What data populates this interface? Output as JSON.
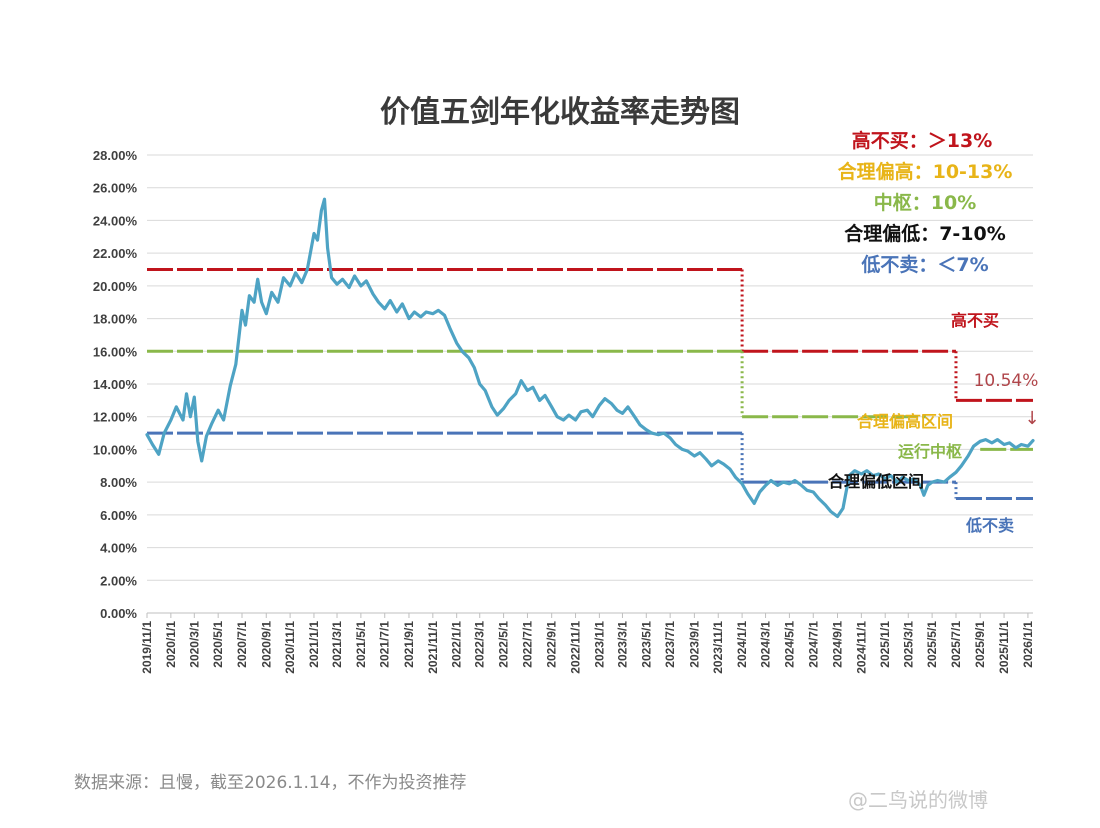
{
  "colors": {
    "red": "#c0141c",
    "orange": "#e8b418",
    "green": "#8ab84a",
    "black": "#111111",
    "blue": "#4a74b8",
    "line": "#4ea3c4",
    "grid": "#d9d9d9"
  },
  "chart_data": {
    "type": "line",
    "title": "价值五剑年化收益率走势图",
    "xlabel": "",
    "ylabel": "",
    "ylim": [
      0,
      28
    ],
    "xlim": [
      "2019-11-01",
      "2026-01-14"
    ],
    "grid": true,
    "legend_position": "top-right",
    "y_ticks": [
      "0.00%",
      "2.00%",
      "4.00%",
      "6.00%",
      "8.00%",
      "10.00%",
      "12.00%",
      "14.00%",
      "16.00%",
      "18.00%",
      "20.00%",
      "22.00%",
      "24.00%",
      "26.00%",
      "28.00%"
    ],
    "x_ticks": [
      "2019/11/1",
      "2020/1/1",
      "2020/3/1",
      "2020/5/1",
      "2020/7/1",
      "2020/9/1",
      "2020/11/1",
      "2021/1/1",
      "2021/3/1",
      "2021/5/1",
      "2021/7/1",
      "2021/9/1",
      "2021/11/1",
      "2022/1/1",
      "2022/3/1",
      "2022/5/1",
      "2022/7/1",
      "2022/9/1",
      "2022/11/1",
      "2023/1/1",
      "2023/3/1",
      "2023/5/1",
      "2023/7/1",
      "2023/9/1",
      "2023/11/1",
      "2024/1/1",
      "2024/3/1",
      "2024/5/1",
      "2024/7/1",
      "2024/9/1",
      "2024/11/1",
      "2025/1/1",
      "2025/3/1",
      "2025/5/1",
      "2025/7/1",
      "2025/9/1",
      "2025/11/1",
      "2026/1/1"
    ],
    "legend": [
      {
        "label": "高不买：＞13%",
        "color": "#c0141c"
      },
      {
        "label": "合理偏高：10-13%",
        "color": "#e8b418"
      },
      {
        "label": "中枢：10%",
        "color": "#8ab84a"
      },
      {
        "label": "合理偏低：7-10%",
        "color": "#111111"
      },
      {
        "label": "低不卖：＜7%",
        "color": "#4a74b8"
      }
    ],
    "annotations": {
      "high": "高不买",
      "current_value": "10.54%",
      "arrow": "↓",
      "upper_band": "合理偏高区间",
      "center": "运行中枢",
      "lower_band": "合理偏低区间",
      "low": "低不卖"
    },
    "threshold_series": [
      {
        "color": "#c0141c",
        "style": "dashed",
        "points": [
          [
            "2019-11-01",
            21
          ],
          [
            "2024-01-01",
            21
          ]
        ]
      },
      {
        "color": "#c0141c",
        "style": "dotted",
        "points": [
          [
            "2024-01-01",
            21
          ],
          [
            "2024-01-01",
            16
          ]
        ]
      },
      {
        "color": "#c0141c",
        "style": "dashed",
        "points": [
          [
            "2024-01-01",
            16
          ],
          [
            "2025-07-01",
            16
          ]
        ]
      },
      {
        "color": "#c0141c",
        "style": "dotted",
        "points": [
          [
            "2025-07-01",
            16
          ],
          [
            "2025-07-01",
            13
          ]
        ]
      },
      {
        "color": "#c0141c",
        "style": "dashed",
        "points": [
          [
            "2025-07-01",
            13
          ],
          [
            "2026-01-14",
            13
          ]
        ]
      },
      {
        "color": "#8ab84a",
        "style": "dashed",
        "points": [
          [
            "2019-11-01",
            16
          ],
          [
            "2024-01-01",
            16
          ]
        ]
      },
      {
        "color": "#8ab84a",
        "style": "dotted",
        "points": [
          [
            "2024-01-01",
            16
          ],
          [
            "2024-01-01",
            12
          ]
        ]
      },
      {
        "color": "#8ab84a",
        "style": "dashed",
        "points": [
          [
            "2024-01-01",
            12
          ],
          [
            "2025-04-15",
            12
          ]
        ]
      },
      {
        "color": "#8ab84a",
        "style": "dashed",
        "points": [
          [
            "2025-09-01",
            10
          ],
          [
            "2026-01-14",
            10
          ]
        ]
      },
      {
        "color": "#4a74b8",
        "style": "dashed",
        "points": [
          [
            "2019-11-01",
            11
          ],
          [
            "2024-01-01",
            11
          ]
        ]
      },
      {
        "color": "#4a74b8",
        "style": "dotted",
        "points": [
          [
            "2024-01-01",
            11
          ],
          [
            "2024-01-01",
            8
          ]
        ]
      },
      {
        "color": "#4a74b8",
        "style": "dashed",
        "points": [
          [
            "2024-01-01",
            8
          ],
          [
            "2025-07-01",
            8
          ]
        ]
      },
      {
        "color": "#4a74b8",
        "style": "dotted",
        "points": [
          [
            "2025-07-01",
            8
          ],
          [
            "2025-07-01",
            7
          ]
        ]
      },
      {
        "color": "#4a74b8",
        "style": "dashed",
        "points": [
          [
            "2025-07-01",
            7
          ],
          [
            "2026-01-14",
            7
          ]
        ]
      }
    ],
    "series": [
      {
        "color": "#4ea3c4",
        "points": [
          [
            "2019-11-01",
            10.9
          ],
          [
            "2019-11-15",
            10.3
          ],
          [
            "2019-12-01",
            9.7
          ],
          [
            "2019-12-15",
            11.0
          ],
          [
            "2020-01-01",
            11.8
          ],
          [
            "2020-01-15",
            12.6
          ],
          [
            "2020-02-01",
            11.8
          ],
          [
            "2020-02-10",
            13.4
          ],
          [
            "2020-02-20",
            12.0
          ],
          [
            "2020-03-01",
            13.2
          ],
          [
            "2020-03-10",
            10.5
          ],
          [
            "2020-03-20",
            9.3
          ],
          [
            "2020-04-01",
            10.8
          ],
          [
            "2020-04-15",
            11.6
          ],
          [
            "2020-05-01",
            12.4
          ],
          [
            "2020-05-15",
            11.8
          ],
          [
            "2020-06-01",
            13.9
          ],
          [
            "2020-06-15",
            15.2
          ],
          [
            "2020-07-01",
            18.5
          ],
          [
            "2020-07-10",
            17.6
          ],
          [
            "2020-07-20",
            19.4
          ],
          [
            "2020-08-01",
            19.0
          ],
          [
            "2020-08-10",
            20.4
          ],
          [
            "2020-08-20",
            19.0
          ],
          [
            "2020-09-01",
            18.3
          ],
          [
            "2020-09-15",
            19.6
          ],
          [
            "2020-10-01",
            19.0
          ],
          [
            "2020-10-15",
            20.5
          ],
          [
            "2020-11-01",
            20.0
          ],
          [
            "2020-11-15",
            20.8
          ],
          [
            "2020-12-01",
            20.2
          ],
          [
            "2020-12-15",
            21.0
          ],
          [
            "2021-01-01",
            23.2
          ],
          [
            "2021-01-10",
            22.8
          ],
          [
            "2021-01-20",
            24.6
          ],
          [
            "2021-01-28",
            25.3
          ],
          [
            "2021-02-05",
            22.3
          ],
          [
            "2021-02-15",
            20.5
          ],
          [
            "2021-03-01",
            20.1
          ],
          [
            "2021-03-15",
            20.4
          ],
          [
            "2021-04-01",
            19.9
          ],
          [
            "2021-04-15",
            20.6
          ],
          [
            "2021-05-01",
            20.0
          ],
          [
            "2021-05-15",
            20.3
          ],
          [
            "2021-06-01",
            19.5
          ],
          [
            "2021-06-15",
            19.0
          ],
          [
            "2021-07-01",
            18.6
          ],
          [
            "2021-07-15",
            19.1
          ],
          [
            "2021-08-01",
            18.4
          ],
          [
            "2021-08-15",
            18.9
          ],
          [
            "2021-09-01",
            18.0
          ],
          [
            "2021-09-15",
            18.4
          ],
          [
            "2021-10-01",
            18.1
          ],
          [
            "2021-10-15",
            18.4
          ],
          [
            "2021-11-01",
            18.3
          ],
          [
            "2021-11-15",
            18.5
          ],
          [
            "2021-12-01",
            18.2
          ],
          [
            "2021-12-15",
            17.4
          ],
          [
            "2022-01-01",
            16.5
          ],
          [
            "2022-01-15",
            16.0
          ],
          [
            "2022-02-01",
            15.6
          ],
          [
            "2022-02-15",
            15.0
          ],
          [
            "2022-03-01",
            14.0
          ],
          [
            "2022-03-15",
            13.6
          ],
          [
            "2022-04-01",
            12.6
          ],
          [
            "2022-04-15",
            12.1
          ],
          [
            "2022-05-01",
            12.5
          ],
          [
            "2022-05-15",
            13.0
          ],
          [
            "2022-06-01",
            13.4
          ],
          [
            "2022-06-15",
            14.2
          ],
          [
            "2022-07-01",
            13.6
          ],
          [
            "2022-07-15",
            13.8
          ],
          [
            "2022-08-01",
            13.0
          ],
          [
            "2022-08-15",
            13.3
          ],
          [
            "2022-09-01",
            12.6
          ],
          [
            "2022-09-15",
            12.0
          ],
          [
            "2022-10-01",
            11.8
          ],
          [
            "2022-10-15",
            12.1
          ],
          [
            "2022-11-01",
            11.8
          ],
          [
            "2022-11-15",
            12.3
          ],
          [
            "2022-12-01",
            12.4
          ],
          [
            "2022-12-15",
            12.0
          ],
          [
            "2023-01-01",
            12.7
          ],
          [
            "2023-01-15",
            13.1
          ],
          [
            "2023-02-01",
            12.8
          ],
          [
            "2023-02-15",
            12.4
          ],
          [
            "2023-03-01",
            12.2
          ],
          [
            "2023-03-15",
            12.6
          ],
          [
            "2023-04-01",
            12.0
          ],
          [
            "2023-04-15",
            11.5
          ],
          [
            "2023-05-01",
            11.2
          ],
          [
            "2023-05-15",
            11.0
          ],
          [
            "2023-06-01",
            10.9
          ],
          [
            "2023-06-15",
            11.0
          ],
          [
            "2023-07-01",
            10.7
          ],
          [
            "2023-07-15",
            10.3
          ],
          [
            "2023-08-01",
            10.0
          ],
          [
            "2023-08-15",
            9.9
          ],
          [
            "2023-09-01",
            9.6
          ],
          [
            "2023-09-15",
            9.8
          ],
          [
            "2023-10-01",
            9.4
          ],
          [
            "2023-10-15",
            9.0
          ],
          [
            "2023-11-01",
            9.3
          ],
          [
            "2023-11-15",
            9.1
          ],
          [
            "2023-12-01",
            8.8
          ],
          [
            "2023-12-15",
            8.3
          ],
          [
            "2024-01-01",
            7.9
          ],
          [
            "2024-01-15",
            7.3
          ],
          [
            "2024-02-01",
            6.7
          ],
          [
            "2024-02-15",
            7.4
          ],
          [
            "2024-03-01",
            7.8
          ],
          [
            "2024-03-15",
            8.1
          ],
          [
            "2024-04-01",
            7.8
          ],
          [
            "2024-04-15",
            8.0
          ],
          [
            "2024-05-01",
            7.9
          ],
          [
            "2024-05-15",
            8.1
          ],
          [
            "2024-06-01",
            7.8
          ],
          [
            "2024-06-15",
            7.5
          ],
          [
            "2024-07-01",
            7.4
          ],
          [
            "2024-07-15",
            7.0
          ],
          [
            "2024-08-01",
            6.6
          ],
          [
            "2024-08-15",
            6.2
          ],
          [
            "2024-09-01",
            5.9
          ],
          [
            "2024-09-15",
            6.4
          ],
          [
            "2024-10-01",
            8.4
          ],
          [
            "2024-10-15",
            8.7
          ],
          [
            "2024-11-01",
            8.5
          ],
          [
            "2024-11-15",
            8.7
          ],
          [
            "2024-12-01",
            8.4
          ],
          [
            "2024-12-15",
            8.5
          ],
          [
            "2025-01-01",
            8.2
          ],
          [
            "2025-01-15",
            8.4
          ],
          [
            "2025-02-01",
            8.0
          ],
          [
            "2025-02-15",
            8.3
          ],
          [
            "2025-03-01",
            8.1
          ],
          [
            "2025-03-15",
            8.2
          ],
          [
            "2025-04-01",
            7.8
          ],
          [
            "2025-04-10",
            7.2
          ],
          [
            "2025-04-20",
            7.8
          ],
          [
            "2025-05-01",
            8.0
          ],
          [
            "2025-05-15",
            8.1
          ],
          [
            "2025-06-01",
            8.0
          ],
          [
            "2025-06-15",
            8.3
          ],
          [
            "2025-07-01",
            8.6
          ],
          [
            "2025-07-15",
            9.0
          ],
          [
            "2025-08-01",
            9.6
          ],
          [
            "2025-08-15",
            10.2
          ],
          [
            "2025-09-01",
            10.5
          ],
          [
            "2025-09-15",
            10.6
          ],
          [
            "2025-10-01",
            10.4
          ],
          [
            "2025-10-15",
            10.6
          ],
          [
            "2025-11-01",
            10.3
          ],
          [
            "2025-11-15",
            10.4
          ],
          [
            "2025-12-01",
            10.1
          ],
          [
            "2025-12-15",
            10.3
          ],
          [
            "2026-01-01",
            10.2
          ],
          [
            "2026-01-14",
            10.54
          ]
        ]
      }
    ]
  },
  "footer": {
    "source": "数据来源：且慢，截至2026.1.14，不作为投资推荐",
    "watermark": "@二鸟说的微博"
  }
}
